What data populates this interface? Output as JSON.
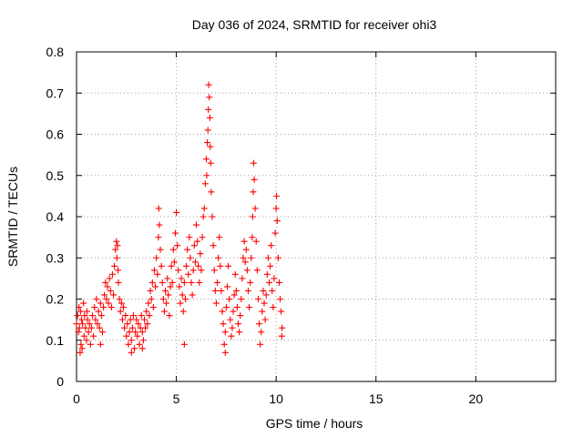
{
  "chart_data": {
    "type": "scatter",
    "title": "Day 036 of 2024, SRMTID for receiver ohi3",
    "xlabel": "GPS time / hours",
    "ylabel": "SRMTID / TECUs",
    "xlim": [
      0,
      24
    ],
    "ylim": [
      0,
      0.8
    ],
    "xticks": [
      0,
      5,
      10,
      15,
      20
    ],
    "xtick_labels": [
      "0",
      "5",
      "10",
      "15",
      "20"
    ],
    "yticks": [
      0,
      0.1,
      0.2,
      0.3,
      0.4,
      0.5,
      0.6,
      0.7,
      0.8
    ],
    "ytick_labels": [
      "0",
      "0.1",
      "0.2",
      "0.3",
      "0.4",
      "0.5",
      "0.6",
      "0.7",
      "0.8"
    ],
    "grid": true,
    "marker": "plus",
    "marker_color": "#ff0000",
    "series": [
      {
        "name": "SRMTID",
        "points": [
          [
            0.0,
            0.14
          ],
          [
            0.05,
            0.16
          ],
          [
            0.1,
            0.12
          ],
          [
            0.12,
            0.18
          ],
          [
            0.15,
            0.13
          ],
          [
            0.2,
            0.17
          ],
          [
            0.22,
            0.09
          ],
          [
            0.25,
            0.15
          ],
          [
            0.28,
            0.08
          ],
          [
            0.3,
            0.14
          ],
          [
            0.35,
            0.19
          ],
          [
            0.38,
            0.11
          ],
          [
            0.4,
            0.16
          ],
          [
            0.45,
            0.13
          ],
          [
            0.5,
            0.1
          ],
          [
            0.52,
            0.17
          ],
          [
            0.55,
            0.15
          ],
          [
            0.6,
            0.12
          ],
          [
            0.65,
            0.14
          ],
          [
            0.7,
            0.09
          ],
          [
            0.75,
            0.13
          ],
          [
            0.8,
            0.16
          ],
          [
            0.85,
            0.11
          ],
          [
            0.9,
            0.18
          ],
          [
            0.95,
            0.15
          ],
          [
            1.0,
            0.2
          ],
          [
            1.05,
            0.14
          ],
          [
            1.1,
            0.17
          ],
          [
            1.15,
            0.13
          ],
          [
            1.2,
            0.19
          ],
          [
            1.25,
            0.16
          ],
          [
            1.3,
            0.12
          ],
          [
            1.35,
            0.18
          ],
          [
            1.4,
            0.21
          ],
          [
            1.45,
            0.24
          ],
          [
            1.5,
            0.2
          ],
          [
            1.55,
            0.23
          ],
          [
            1.6,
            0.19
          ],
          [
            1.65,
            0.25
          ],
          [
            1.7,
            0.22
          ],
          [
            1.75,
            0.18
          ],
          [
            1.8,
            0.26
          ],
          [
            1.85,
            0.21
          ],
          [
            1.9,
            0.28
          ],
          [
            1.95,
            0.32
          ],
          [
            2.0,
            0.34
          ],
          [
            2.02,
            0.3
          ],
          [
            2.05,
            0.33
          ],
          [
            2.08,
            0.27
          ],
          [
            2.1,
            0.24
          ],
          [
            2.15,
            0.2
          ],
          [
            2.2,
            0.17
          ],
          [
            2.25,
            0.19
          ],
          [
            2.3,
            0.15
          ],
          [
            2.35,
            0.18
          ],
          [
            2.4,
            0.13
          ],
          [
            2.45,
            0.16
          ],
          [
            2.5,
            0.11
          ],
          [
            2.55,
            0.14
          ],
          [
            2.6,
            0.09
          ],
          [
            2.65,
            0.12
          ],
          [
            2.7,
            0.15
          ],
          [
            2.75,
            0.1
          ],
          [
            2.8,
            0.13
          ],
          [
            2.85,
            0.16
          ],
          [
            2.9,
            0.08
          ],
          [
            2.95,
            0.12
          ],
          [
            3.0,
            0.15
          ],
          [
            3.05,
            0.11
          ],
          [
            3.1,
            0.14
          ],
          [
            3.15,
            0.09
          ],
          [
            3.2,
            0.13
          ],
          [
            3.25,
            0.16
          ],
          [
            3.3,
            0.12
          ],
          [
            3.35,
            0.1
          ],
          [
            3.4,
            0.15
          ],
          [
            3.45,
            0.13
          ],
          [
            3.5,
            0.17
          ],
          [
            3.55,
            0.14
          ],
          [
            3.6,
            0.19
          ],
          [
            3.65,
            0.16
          ],
          [
            3.7,
            0.22
          ],
          [
            3.75,
            0.2
          ],
          [
            3.8,
            0.24
          ],
          [
            3.85,
            0.18
          ],
          [
            3.9,
            0.27
          ],
          [
            3.95,
            0.23
          ],
          [
            4.0,
            0.3
          ],
          [
            4.05,
            0.26
          ],
          [
            4.1,
            0.35
          ],
          [
            4.12,
            0.42
          ],
          [
            4.15,
            0.38
          ],
          [
            4.2,
            0.32
          ],
          [
            4.25,
            0.28
          ],
          [
            4.3,
            0.24
          ],
          [
            4.35,
            0.2
          ],
          [
            4.4,
            0.17
          ],
          [
            4.45,
            0.22
          ],
          [
            4.5,
            0.19
          ],
          [
            4.55,
            0.25
          ],
          [
            4.6,
            0.21
          ],
          [
            4.65,
            0.16
          ],
          [
            4.7,
            0.23
          ],
          [
            4.75,
            0.28
          ],
          [
            4.8,
            0.24
          ],
          [
            4.85,
            0.32
          ],
          [
            4.9,
            0.29
          ],
          [
            4.95,
            0.36
          ],
          [
            5.0,
            0.41
          ],
          [
            5.05,
            0.33
          ],
          [
            5.1,
            0.27
          ],
          [
            5.15,
            0.23
          ],
          [
            5.2,
            0.19
          ],
          [
            5.25,
            0.25
          ],
          [
            5.3,
            0.21
          ],
          [
            5.35,
            0.17
          ],
          [
            5.4,
            0.24
          ],
          [
            5.45,
            0.2
          ],
          [
            5.5,
            0.28
          ],
          [
            5.55,
            0.32
          ],
          [
            5.6,
            0.26
          ],
          [
            5.65,
            0.35
          ],
          [
            5.7,
            0.3
          ],
          [
            5.75,
            0.24
          ],
          [
            5.8,
            0.21
          ],
          [
            5.85,
            0.27
          ],
          [
            5.9,
            0.33
          ],
          [
            5.95,
            0.29
          ],
          [
            6.0,
            0.38
          ],
          [
            6.05,
            0.34
          ],
          [
            6.1,
            0.28
          ],
          [
            6.15,
            0.24
          ],
          [
            6.2,
            0.31
          ],
          [
            6.25,
            0.27
          ],
          [
            6.3,
            0.35
          ],
          [
            6.35,
            0.4
          ],
          [
            6.4,
            0.42
          ],
          [
            6.45,
            0.48
          ],
          [
            6.5,
            0.54
          ],
          [
            6.52,
            0.5
          ],
          [
            6.55,
            0.58
          ],
          [
            6.58,
            0.61
          ],
          [
            6.6,
            0.66
          ],
          [
            6.62,
            0.72
          ],
          [
            6.65,
            0.69
          ],
          [
            6.68,
            0.64
          ],
          [
            6.7,
            0.57
          ],
          [
            6.72,
            0.53
          ],
          [
            6.75,
            0.46
          ],
          [
            6.8,
            0.4
          ],
          [
            6.85,
            0.33
          ],
          [
            6.9,
            0.27
          ],
          [
            6.95,
            0.22
          ],
          [
            7.0,
            0.19
          ],
          [
            7.05,
            0.24
          ],
          [
            7.1,
            0.3
          ],
          [
            7.15,
            0.35
          ],
          [
            7.2,
            0.28
          ],
          [
            7.25,
            0.22
          ],
          [
            7.3,
            0.17
          ],
          [
            7.35,
            0.14
          ],
          [
            7.4,
            0.09
          ],
          [
            7.45,
            0.12
          ],
          [
            7.5,
            0.18
          ],
          [
            7.55,
            0.23
          ],
          [
            7.6,
            0.28
          ],
          [
            7.65,
            0.2
          ],
          [
            7.7,
            0.15
          ],
          [
            7.75,
            0.11
          ],
          [
            7.8,
            0.13
          ],
          [
            7.85,
            0.17
          ],
          [
            7.9,
            0.21
          ],
          [
            7.95,
            0.26
          ],
          [
            8.0,
            0.22
          ],
          [
            8.05,
            0.18
          ],
          [
            8.1,
            0.14
          ],
          [
            8.15,
            0.12
          ],
          [
            8.2,
            0.16
          ],
          [
            8.25,
            0.2
          ],
          [
            8.3,
            0.25
          ],
          [
            8.35,
            0.3
          ],
          [
            8.4,
            0.34
          ],
          [
            8.45,
            0.29
          ],
          [
            8.5,
            0.32
          ],
          [
            8.55,
            0.27
          ],
          [
            8.6,
            0.22
          ],
          [
            8.65,
            0.18
          ],
          [
            8.7,
            0.24
          ],
          [
            8.75,
            0.3
          ],
          [
            8.8,
            0.35
          ],
          [
            8.82,
            0.4
          ],
          [
            8.85,
            0.46
          ],
          [
            8.87,
            0.53
          ],
          [
            8.9,
            0.49
          ],
          [
            8.95,
            0.42
          ],
          [
            9.0,
            0.34
          ],
          [
            9.05,
            0.27
          ],
          [
            9.1,
            0.2
          ],
          [
            9.15,
            0.14
          ],
          [
            9.2,
            0.09
          ],
          [
            9.25,
            0.12
          ],
          [
            9.3,
            0.17
          ],
          [
            9.35,
            0.22
          ],
          [
            9.4,
            0.19
          ],
          [
            9.45,
            0.15
          ],
          [
            9.5,
            0.21
          ],
          [
            9.55,
            0.26
          ],
          [
            9.6,
            0.3
          ],
          [
            9.65,
            0.24
          ],
          [
            9.7,
            0.28
          ],
          [
            9.75,
            0.33
          ],
          [
            9.8,
            0.22
          ],
          [
            9.85,
            0.18
          ],
          [
            9.9,
            0.25
          ],
          [
            9.95,
            0.36
          ],
          [
            10.0,
            0.42
          ],
          [
            10.02,
            0.45
          ],
          [
            10.05,
            0.39
          ],
          [
            10.1,
            0.3
          ],
          [
            10.15,
            0.24
          ],
          [
            10.2,
            0.2
          ],
          [
            10.25,
            0.17
          ],
          [
            10.28,
            0.11
          ],
          [
            10.3,
            0.13
          ],
          [
            0.18,
            0.07
          ],
          [
            1.2,
            0.09
          ],
          [
            2.75,
            0.07
          ],
          [
            3.3,
            0.08
          ],
          [
            5.4,
            0.09
          ],
          [
            7.45,
            0.07
          ]
        ]
      }
    ]
  }
}
